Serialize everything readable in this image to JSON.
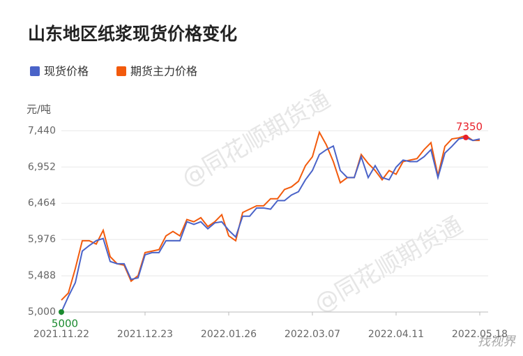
{
  "chart_data": {
    "type": "line",
    "title": "山东地区纸浆现货价格变化",
    "y_label": "元/吨",
    "watermark": "@同花顺期货通",
    "logo": "找视界",
    "categories": [
      "2021.11.22",
      null,
      null,
      null,
      null,
      null,
      null,
      null,
      null,
      null,
      null,
      null,
      "2021.12.23",
      null,
      null,
      null,
      null,
      null,
      null,
      null,
      null,
      null,
      null,
      null,
      "2022.01.26",
      null,
      null,
      null,
      null,
      null,
      null,
      null,
      null,
      null,
      null,
      null,
      "2022.03.07",
      null,
      null,
      null,
      null,
      null,
      null,
      null,
      null,
      null,
      null,
      null,
      "2022.04.11",
      null,
      null,
      null,
      null,
      null,
      null,
      null,
      null,
      null,
      null,
      null,
      "2022.05.18"
    ],
    "series": [
      {
        "name": "现货价格",
        "color": "#4a63c8",
        "values": [
          5000,
          5207,
          5395,
          5820,
          5895,
          5960,
          5990,
          5680,
          5650,
          5650,
          5440,
          5460,
          5770,
          5800,
          5800,
          5960,
          5960,
          5960,
          6215,
          6180,
          6215,
          6120,
          6200,
          6215,
          6100,
          6010,
          6290,
          6290,
          6400,
          6400,
          6385,
          6500,
          6500,
          6575,
          6620,
          6780,
          6905,
          7120,
          7185,
          7235,
          6905,
          6810,
          6810,
          7090,
          6810,
          6970,
          6810,
          6780,
          6950,
          7045,
          7025,
          7025,
          7090,
          7185,
          6810,
          7140,
          7230,
          7330,
          7350,
          7310,
          7330
        ]
      },
      {
        "name": "期货主力价格",
        "color": "#f25a0c",
        "values": [
          5160,
          5255,
          5585,
          5960,
          5960,
          5915,
          6100,
          5745,
          5650,
          5630,
          5415,
          5490,
          5800,
          5820,
          5840,
          6025,
          6085,
          6025,
          6245,
          6215,
          6270,
          6150,
          6215,
          6310,
          6025,
          5960,
          6340,
          6385,
          6430,
          6430,
          6525,
          6525,
          6650,
          6685,
          6760,
          6970,
          7090,
          7420,
          7250,
          7025,
          6740,
          6810,
          6810,
          7120,
          7000,
          6905,
          6780,
          6905,
          6855,
          7025,
          7045,
          7065,
          7185,
          7280,
          6835,
          7230,
          7330,
          7345,
          7375,
          7310,
          7310
        ]
      }
    ],
    "highlights": [
      {
        "series": 0,
        "index": 0,
        "color": "#1a8a2e"
      },
      {
        "series": 0,
        "index": 58,
        "color": "#e8202a"
      }
    ],
    "ylim": [
      5000,
      7650
    ],
    "yticks": [
      {
        "value": 5000,
        "label": "5,000"
      },
      {
        "value": 5488,
        "label": "5,488"
      },
      {
        "value": 5976,
        "label": "5,976"
      },
      {
        "value": 6464,
        "label": "6,464"
      },
      {
        "value": 6952,
        "label": "6,952"
      },
      {
        "value": 7440,
        "label": "7,440"
      }
    ],
    "grid": true
  }
}
